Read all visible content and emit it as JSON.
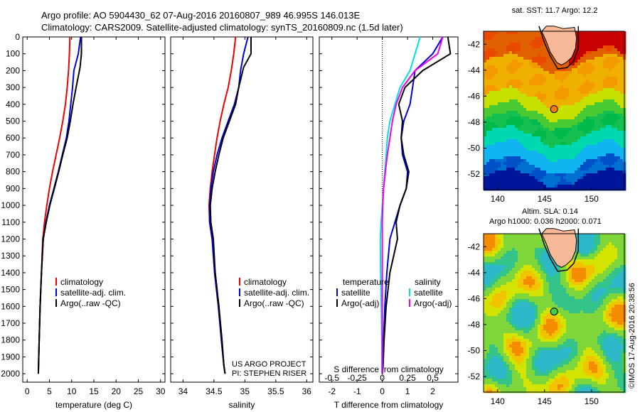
{
  "header": {
    "line1": "Argo profile: AO 5904430_62 07-Aug-2016 20160807_989 46.995S 146.013E",
    "line2": "Climatology: CARS2009. Satellite-adjusted climatology: synTS_20160809.nc (1.5d later)"
  },
  "credit": "©IMOS 17-Aug-2016 20:38:56",
  "project": {
    "line1": "US ARGO PROJECT",
    "line2": "PI: STEPHEN RISER"
  },
  "colors": {
    "climatology": "#ee0000",
    "satellite": "#0000dd",
    "argo": "#000000",
    "s_satellite": "#00e0e0",
    "s_argo": "#ee00ee"
  },
  "chart_data": [
    {
      "id": "temperature",
      "type": "line",
      "xlabel": "temperature (deg C)",
      "ylabel": "",
      "xlim": [
        -1,
        31
      ],
      "ylim": [
        2050,
        0
      ],
      "xticks": [
        0,
        5,
        10,
        15,
        20,
        25,
        30
      ],
      "yticks": [
        0,
        100,
        200,
        300,
        400,
        500,
        600,
        700,
        800,
        900,
        1000,
        1100,
        1200,
        1300,
        1400,
        1500,
        1600,
        1700,
        1800,
        1900,
        2000
      ],
      "legend": [
        "climatology",
        "satellite-adj. clim.",
        "Argo(..raw -QC)"
      ],
      "series": [
        {
          "name": "climatology",
          "color": "#ee0000",
          "x": [
            9.6,
            9.5,
            9.3,
            9.0,
            8.6,
            8.0,
            7.3,
            6.5,
            5.7,
            5.0,
            4.4,
            3.9,
            3.5,
            3.2,
            2.9,
            2.7,
            2.55,
            2.5
          ],
          "y": [
            0,
            100,
            200,
            300,
            400,
            500,
            600,
            700,
            800,
            900,
            1000,
            1100,
            1200,
            1400,
            1600,
            1800,
            1950,
            2000
          ]
        },
        {
          "name": "satellite-adj. clim.",
          "color": "#0000dd",
          "x": [
            12.0,
            11.5,
            10.5,
            10.2,
            9.8,
            9.4,
            8.8,
            7.9,
            7.0,
            6.0,
            5.0,
            4.2,
            3.6,
            3.2,
            2.9,
            2.7,
            2.55,
            2.5
          ],
          "y": [
            0,
            100,
            200,
            300,
            400,
            500,
            600,
            700,
            800,
            900,
            1000,
            1100,
            1200,
            1400,
            1600,
            1800,
            1950,
            2000
          ]
        },
        {
          "name": "Argo(..raw -QC)",
          "color": "#000000",
          "x": [
            12.2,
            12.2,
            11.9,
            11.0,
            10.3,
            9.7,
            9.0,
            8.0,
            7.1,
            6.1,
            5.1,
            4.3,
            3.6,
            3.2,
            2.9,
            2.7,
            2.55,
            2.5
          ],
          "y": [
            0,
            100,
            180,
            300,
            400,
            500,
            600,
            700,
            800,
            900,
            1000,
            1100,
            1200,
            1400,
            1600,
            1800,
            1950,
            2000
          ]
        }
      ]
    },
    {
      "id": "salinity",
      "type": "line",
      "xlabel": "salinity",
      "ylabel": "",
      "xlim": [
        33.8,
        36.1
      ],
      "ylim": [
        2050,
        0
      ],
      "xticks": [
        34,
        34.5,
        35,
        35.5,
        36
      ],
      "xticklabels": [
        "34",
        "34.5",
        "35",
        "35.5",
        "36"
      ],
      "legend": [
        "climatology",
        "satellite-adj. clim.",
        "Argo(..raw -QC)"
      ],
      "series": [
        {
          "name": "climatology",
          "color": "#ee0000",
          "x": [
            34.85,
            34.82,
            34.78,
            34.73,
            34.66,
            34.6,
            34.55,
            34.51,
            34.47,
            34.44,
            34.42,
            34.43,
            34.47,
            34.52,
            34.58,
            34.62,
            34.66,
            34.68
          ],
          "y": [
            0,
            100,
            200,
            300,
            400,
            500,
            600,
            700,
            800,
            900,
            1000,
            1100,
            1200,
            1400,
            1600,
            1800,
            1950,
            2000
          ]
        },
        {
          "name": "satellite-adj. clim.",
          "color": "#0000dd",
          "x": [
            35.05,
            34.98,
            34.93,
            34.9,
            34.83,
            34.73,
            34.63,
            34.55,
            34.49,
            34.45,
            34.43,
            34.43,
            34.47,
            34.51,
            34.57,
            34.62,
            34.66,
            34.68
          ],
          "y": [
            0,
            100,
            200,
            300,
            400,
            500,
            600,
            700,
            800,
            900,
            1000,
            1100,
            1200,
            1400,
            1600,
            1800,
            1950,
            2000
          ]
        },
        {
          "name": "Argo(..raw -QC)",
          "color": "#000000",
          "x": [
            35.1,
            35.1,
            34.98,
            34.9,
            34.85,
            34.75,
            34.65,
            34.58,
            34.52,
            34.47,
            34.44,
            34.45,
            34.49,
            34.52,
            34.58,
            34.63,
            34.66,
            34.68
          ],
          "y": [
            0,
            100,
            180,
            300,
            400,
            500,
            600,
            700,
            800,
            900,
            1000,
            1100,
            1200,
            1400,
            1600,
            1800,
            1950,
            2000
          ]
        }
      ]
    },
    {
      "id": "differences",
      "type": "line",
      "xlabel": "T difference from climatology",
      "xlabel_top": "S difference from climatology",
      "xlim": [
        -2.5,
        3.0
      ],
      "ylim": [
        2050,
        0
      ],
      "xticks": [
        -2,
        -1,
        0,
        1,
        2
      ],
      "s_ticks": [
        -0.5,
        -0.25,
        0,
        0.25,
        0.5
      ],
      "s_ticklabels": [
        "-0.5",
        "-0.25",
        "0",
        "0.25",
        "0.5"
      ],
      "legend_left_title": "temperature",
      "legend_right_title": "salinity",
      "legend": [
        "satellite",
        "Argo(-adj)",
        "satellite",
        "Argo(-adj)"
      ],
      "series": [
        {
          "name": "satellite",
          "color": "#0000dd",
          "x": [
            2.4,
            2.0,
            1.3,
            1.2,
            1.1,
            0.85,
            0.75,
            0.8,
            1.0,
            0.95,
            0.7,
            0.5,
            0.3,
            0.18,
            0.1,
            0.05,
            0.02,
            0.0
          ],
          "y": [
            0,
            100,
            200,
            300,
            400,
            500,
            600,
            700,
            800,
            900,
            1000,
            1100,
            1200,
            1400,
            1600,
            1800,
            1950,
            2000
          ]
        },
        {
          "name": "Argo(-adj)",
          "color": "#000000",
          "x": [
            2.6,
            2.7,
            1.6,
            0.9,
            0.65,
            0.8,
            0.75,
            0.85,
            1.05,
            0.95,
            0.7,
            0.55,
            0.6,
            0.3,
            0.15,
            0.07,
            0.03,
            0.0
          ],
          "y": [
            0,
            100,
            200,
            300,
            400,
            500,
            600,
            700,
            800,
            900,
            1000,
            1100,
            1200,
            1400,
            1600,
            1800,
            1950,
            2000
          ]
        },
        {
          "name": "satellite",
          "color": "#00e0e0",
          "x": [
            1.5,
            1.3,
            1.1,
            0.7,
            0.5,
            0.3,
            0.2,
            0.15,
            0.1,
            0.05,
            0.0,
            -0.05,
            -0.08,
            -0.07,
            -0.04,
            -0.02,
            -0.02,
            -0.02
          ],
          "y": [
            0,
            100,
            200,
            300,
            400,
            500,
            600,
            700,
            800,
            900,
            1000,
            1100,
            1200,
            1400,
            1600,
            1800,
            1950,
            2000
          ]
        },
        {
          "name": "Argo(-adj)",
          "color": "#ee00ee",
          "x": [
            2.4,
            2.2,
            1.3,
            0.8,
            0.55,
            0.4,
            0.3,
            0.2,
            0.12,
            0.05,
            0.02,
            0.0,
            0.0,
            0.0,
            0.0,
            0.0,
            0.0,
            0.0
          ],
          "y": [
            0,
            100,
            200,
            300,
            400,
            500,
            600,
            700,
            800,
            900,
            1000,
            1100,
            1200,
            1400,
            1600,
            1800,
            1950,
            2000
          ]
        }
      ]
    },
    {
      "id": "sst_map",
      "type": "heatmap",
      "title": "sat. SST: 11.7 Argo: 12.2",
      "xlim": [
        138.5,
        153.5
      ],
      "ylim": [
        -53.2,
        -41
      ],
      "xticks": [
        140,
        145,
        150
      ],
      "yticks": [
        -42,
        -44,
        -46,
        -48,
        -50,
        -52
      ],
      "point": {
        "lon": 146.013,
        "lat": -46.995,
        "color": "#ff7a00"
      }
    },
    {
      "id": "sla_map",
      "type": "heatmap",
      "title": "Altim. SLA: 0.14",
      "subtitle": "Argo h1000: 0.036 h2000: 0.071",
      "xlim": [
        138.5,
        153.5
      ],
      "ylim": [
        -53.2,
        -41
      ],
      "xticks": [
        140,
        145,
        150
      ],
      "yticks": [
        -42,
        -44,
        -46,
        -48,
        -50,
        -52
      ],
      "point": {
        "lon": 146.013,
        "lat": -46.995,
        "color": "#44cc44"
      }
    }
  ]
}
